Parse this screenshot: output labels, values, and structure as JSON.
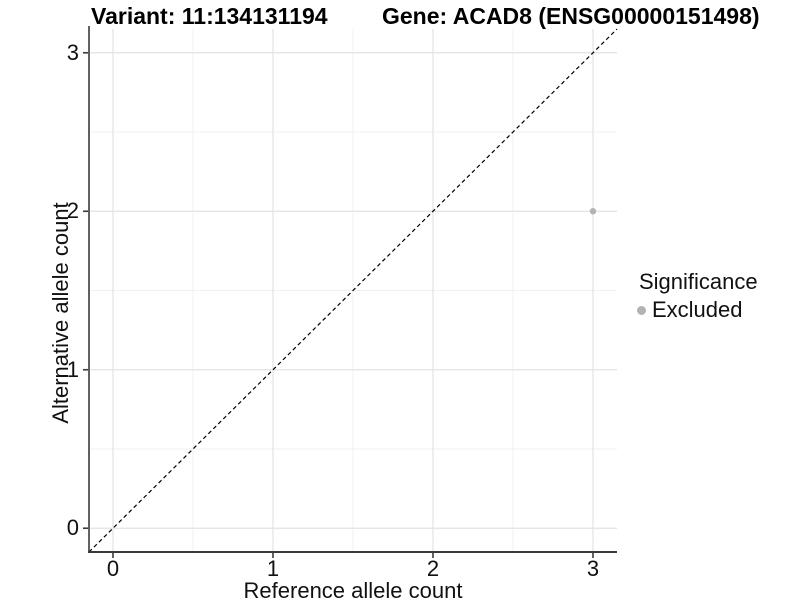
{
  "title": {
    "variant": "Variant: 11:134131194",
    "gene": "Gene: ACAD8 (ENSG00000151498)"
  },
  "chart_data": {
    "type": "scatter",
    "title_left": "Variant: 11:134131194",
    "title_right": "Gene: ACAD8 (ENSG00000151498)",
    "xlabel": "Reference allele count",
    "ylabel": "Alternative allele count",
    "xlim": [
      -0.15,
      3.15
    ],
    "ylim": [
      -0.15,
      3.15
    ],
    "xticks": [
      0,
      1,
      2,
      3
    ],
    "yticks": [
      0,
      1,
      2,
      3
    ],
    "minor_gridlines_x": [
      0.5,
      1.5,
      2.5
    ],
    "minor_gridlines_y": [
      0.5,
      1.5,
      2.5
    ],
    "grid": "on",
    "points": [
      {
        "x": 3,
        "y": 2,
        "significance": "Excluded"
      }
    ],
    "identity_line": {
      "style": "dashed",
      "from": -0.15,
      "to": 3.15
    },
    "legend": {
      "title": "Significance",
      "position": "right",
      "entries": [
        {
          "label": "Excluded",
          "color": "#b3b3b3"
        }
      ]
    }
  },
  "colors": {
    "background": "#ffffff",
    "excluded_point": "#b3b3b3",
    "major_grid": "#e3e3e3",
    "minor_grid": "#f1f1f1",
    "axis_line": "#3a3a3a",
    "dashed_line": "#000000",
    "tick_text": "#111111",
    "title_text": "#000000"
  }
}
